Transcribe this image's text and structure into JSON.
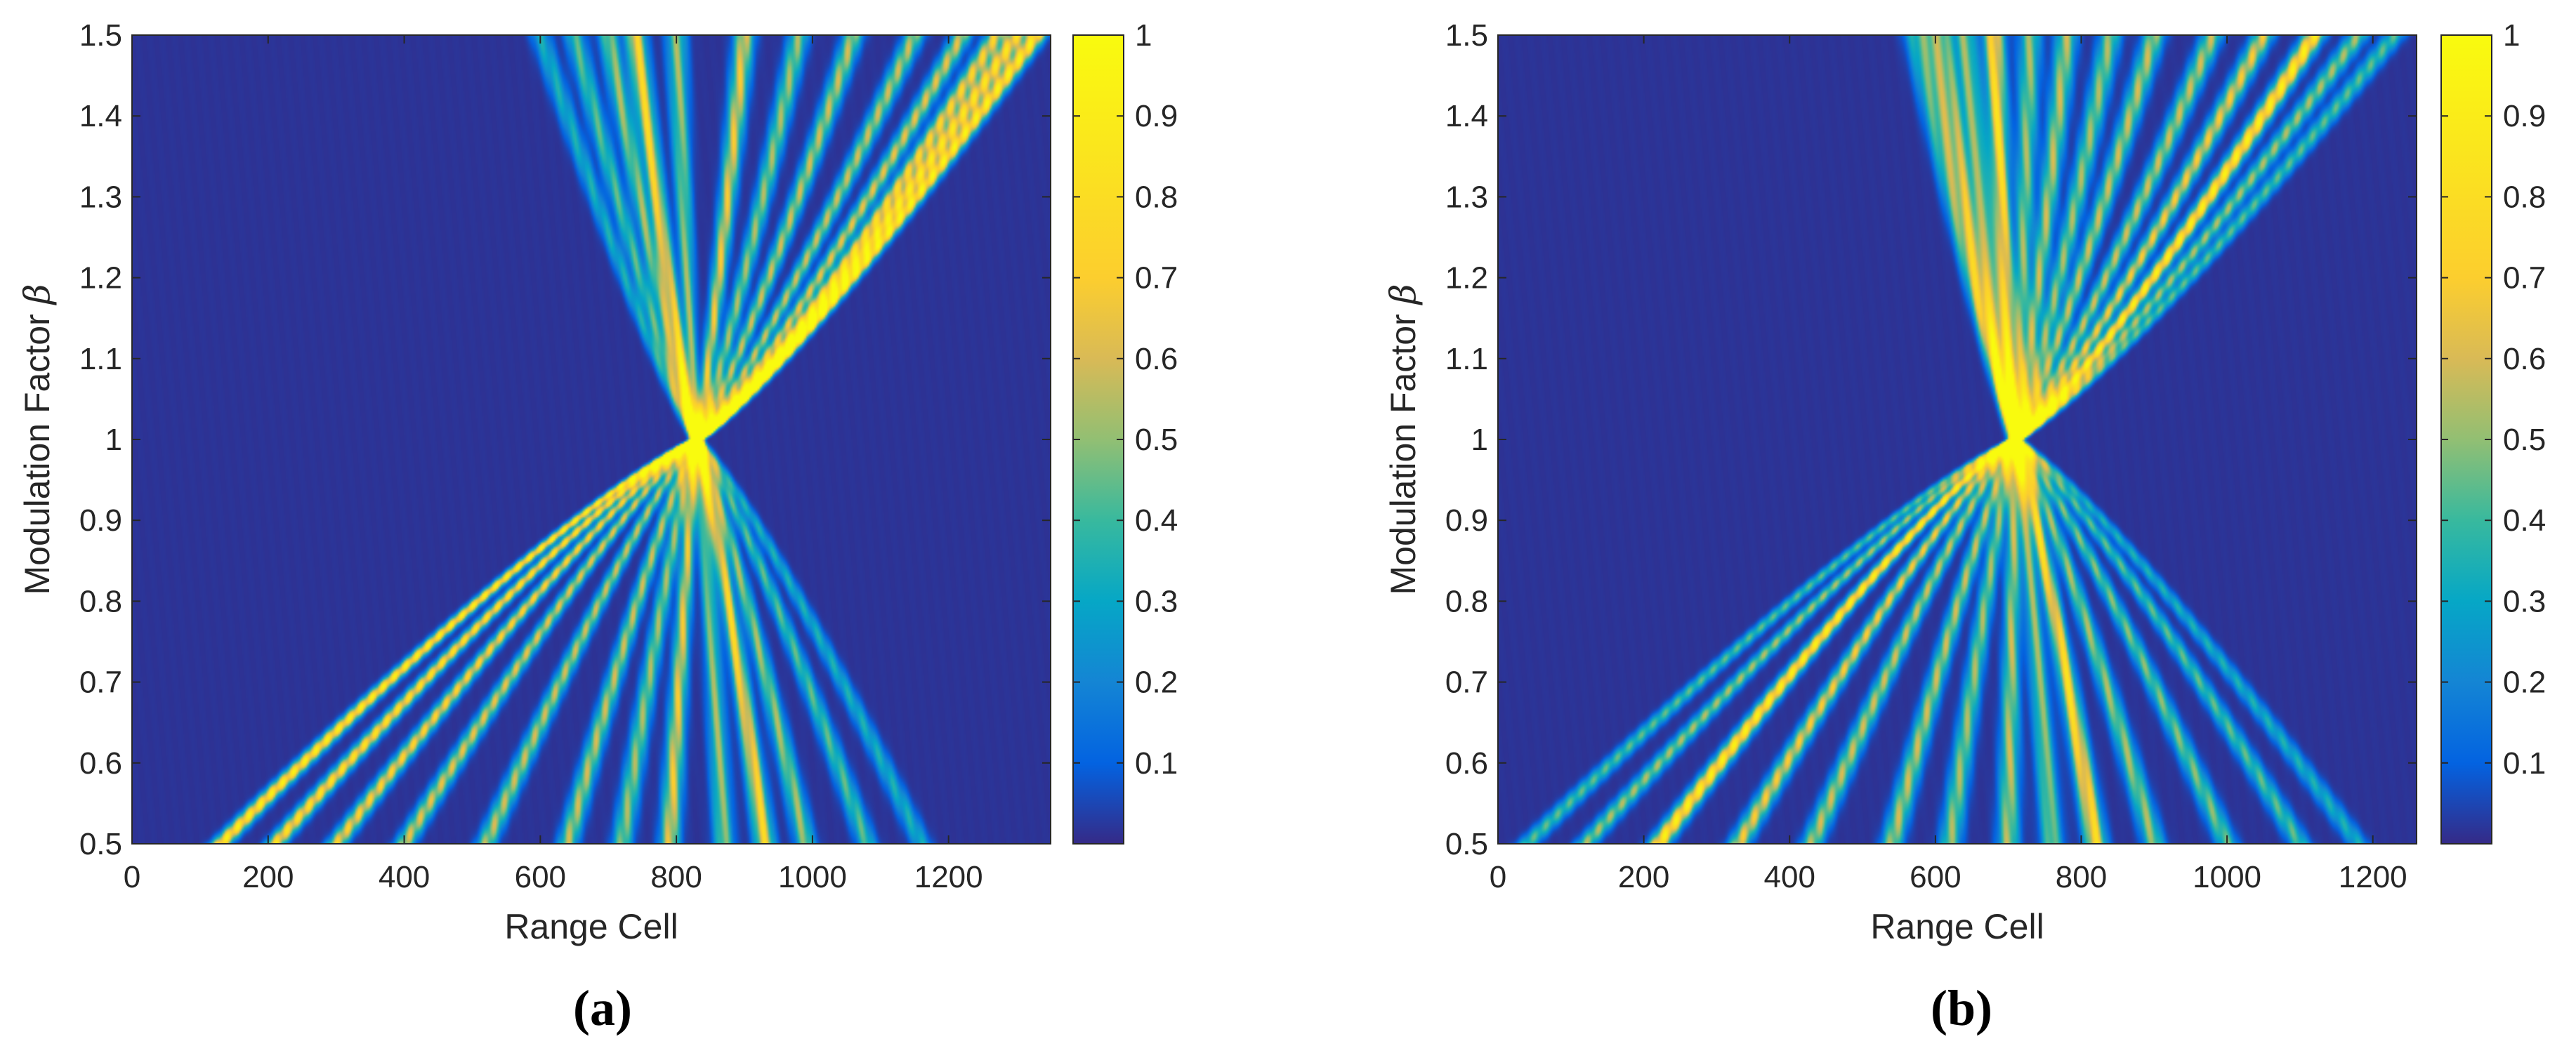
{
  "chart_data": [
    {
      "type": "heatmap",
      "panel_label": "(a)",
      "xlabel": "Range Cell",
      "ylabel_text": "Modulation Factor ",
      "ylabel_symbol": "β",
      "xlim": [
        0,
        1350
      ],
      "ylim": [
        0.5,
        1.5
      ],
      "xticks": [
        "0",
        "200",
        "400",
        "600",
        "800",
        "1000",
        "1200"
      ],
      "xtick_values": [
        0,
        200,
        400,
        600,
        800,
        1000,
        1200
      ],
      "yticks": [
        "0.5",
        "0.6",
        "0.7",
        "0.8",
        "0.9",
        "1",
        "1.1",
        "1.2",
        "1.3",
        "1.4",
        "1.5"
      ],
      "ytick_values": [
        0.5,
        0.6,
        0.7,
        0.8,
        0.9,
        1.0,
        1.1,
        1.2,
        1.3,
        1.4,
        1.5
      ],
      "colorbar": {
        "ticks": [
          "0.1",
          "0.2",
          "0.3",
          "0.4",
          "0.5",
          "0.6",
          "0.7",
          "0.8",
          "0.9",
          "1"
        ],
        "tick_values": [
          0.1,
          0.2,
          0.3,
          0.4,
          0.5,
          0.6,
          0.7,
          0.8,
          0.9,
          1.0
        ],
        "range": [
          0,
          1
        ],
        "colormap": "parula"
      },
      "focus": {
        "range_cell": 830,
        "beta": 1.0
      },
      "ridges": [
        {
          "x05": 130,
          "x15": 1330,
          "amp": 0.95
        },
        {
          "x05": 210,
          "x15": 1300,
          "amp": 0.85
        },
        {
          "x05": 300,
          "x15": 1270,
          "amp": 0.75
        },
        {
          "x05": 400,
          "x15": 1220,
          "amp": 0.65
        },
        {
          "x05": 520,
          "x15": 1150,
          "amp": 0.6
        },
        {
          "x05": 640,
          "x15": 1060,
          "amp": 0.6
        },
        {
          "x05": 720,
          "x15": 980,
          "amp": 0.55
        },
        {
          "x05": 790,
          "x15": 900,
          "amp": 0.7
        },
        {
          "x05": 870,
          "x15": 800,
          "amp": 0.55
        },
        {
          "x05": 930,
          "x15": 740,
          "amp": 0.8
        },
        {
          "x05": 990,
          "x15": 700,
          "amp": 0.55
        },
        {
          "x05": 1080,
          "x15": 650,
          "amp": 0.45
        },
        {
          "x05": 1160,
          "x15": 600,
          "amp": 0.35
        }
      ]
    },
    {
      "type": "heatmap",
      "panel_label": "(b)",
      "xlabel": "Range Cell",
      "ylabel_text": "Modulation Factor ",
      "ylabel_symbol": "β",
      "xlim": [
        0,
        1260
      ],
      "ylim": [
        0.5,
        1.5
      ],
      "xticks": [
        "0",
        "200",
        "400",
        "600",
        "800",
        "1000",
        "1200"
      ],
      "xtick_values": [
        0,
        200,
        400,
        600,
        800,
        1000,
        1200
      ],
      "yticks": [
        "0.5",
        "0.6",
        "0.7",
        "0.8",
        "0.9",
        "1",
        "1.1",
        "1.2",
        "1.3",
        "1.4",
        "1.5"
      ],
      "ytick_values": [
        0.5,
        0.6,
        0.7,
        0.8,
        0.9,
        1.0,
        1.1,
        1.2,
        1.3,
        1.4,
        1.5
      ],
      "colorbar": {
        "ticks": [
          "0.1",
          "0.2",
          "0.3",
          "0.4",
          "0.5",
          "0.6",
          "0.7",
          "0.8",
          "0.9",
          "1"
        ],
        "tick_values": [
          0.1,
          0.2,
          0.3,
          0.4,
          0.5,
          0.6,
          0.7,
          0.8,
          0.9,
          1.0
        ],
        "range": [
          0,
          1
        ],
        "colormap": "parula"
      },
      "focus": {
        "range_cell": 710,
        "beta": 1.0
      },
      "ridges": [
        {
          "x05": 40,
          "x15": 1230,
          "amp": 0.45
        },
        {
          "x05": 120,
          "x15": 1180,
          "amp": 0.55
        },
        {
          "x05": 220,
          "x15": 1120,
          "amp": 0.95
        },
        {
          "x05": 330,
          "x15": 1050,
          "amp": 0.7
        },
        {
          "x05": 430,
          "x15": 980,
          "amp": 0.6
        },
        {
          "x05": 540,
          "x15": 900,
          "amp": 0.6
        },
        {
          "x05": 620,
          "x15": 840,
          "amp": 0.55
        },
        {
          "x05": 700,
          "x15": 780,
          "amp": 0.6
        },
        {
          "x05": 760,
          "x15": 730,
          "amp": 0.55
        },
        {
          "x05": 820,
          "x15": 680,
          "amp": 0.85
        },
        {
          "x05": 900,
          "x15": 640,
          "amp": 0.55
        },
        {
          "x05": 1000,
          "x15": 610,
          "amp": 0.5
        },
        {
          "x05": 1100,
          "x15": 590,
          "amp": 0.45
        },
        {
          "x05": 1180,
          "x15": 570,
          "amp": 0.35
        }
      ]
    }
  ]
}
